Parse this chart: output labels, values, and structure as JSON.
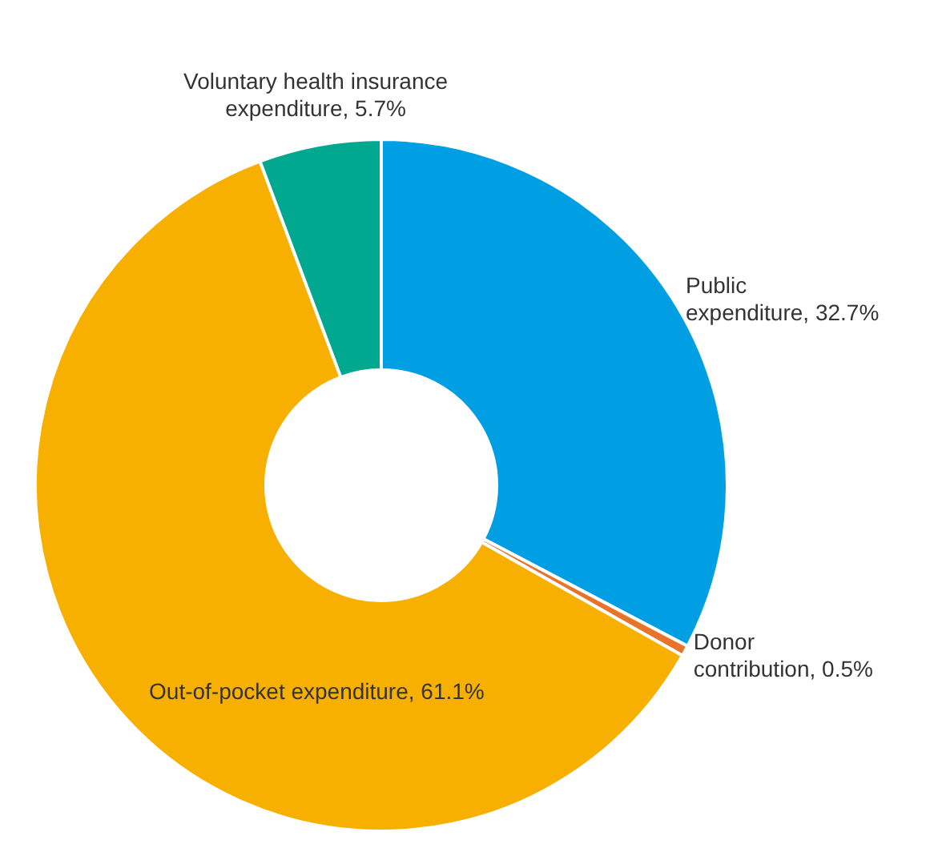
{
  "chart_data": {
    "type": "donut",
    "categories": [
      "Public expenditure",
      "Donor contribution",
      "Out-of-pocket expenditure",
      "Voluntary health insurance expenditure"
    ],
    "values": [
      32.7,
      0.5,
      61.1,
      5.7
    ],
    "value_labels": [
      "32.7%",
      "0.5%",
      "61.1%",
      "5.7%"
    ],
    "colors": [
      "#009fe3",
      "#e8742a",
      "#f7b000",
      "#00a88f"
    ],
    "legend": false
  }
}
